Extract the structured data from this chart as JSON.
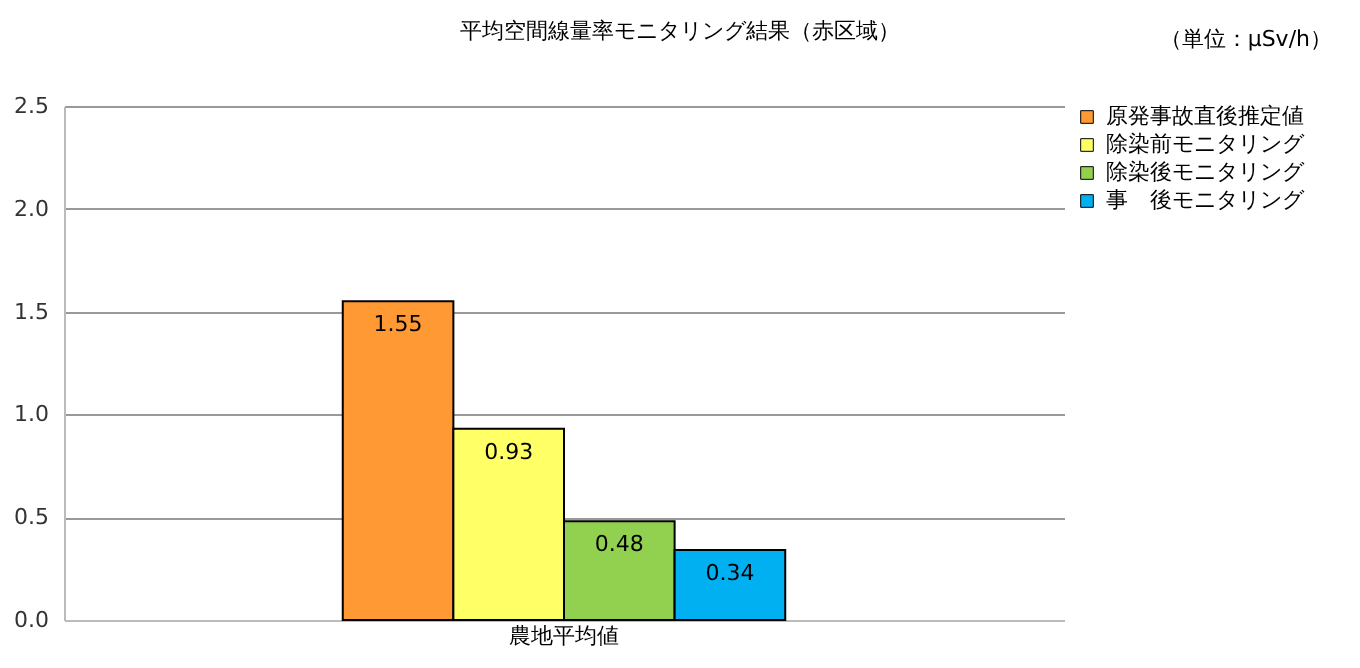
{
  "chart_data": {
    "type": "bar",
    "title": "平均空間線量率モニタリング結果",
    "subtitle": "（赤区域）",
    "annotations": [
      "（単位：μSv/h）"
    ],
    "categories": [
      "農地平均値"
    ],
    "series": [
      {
        "name": "原発事故直後推定値",
        "color": "#ff9933",
        "values": [
          1.55
        ]
      },
      {
        "name": "除染前モニタリング",
        "color": "#ffff66",
        "values": [
          0.93
        ]
      },
      {
        "name": "除染後モニタリング",
        "color": "#92d050",
        "values": [
          0.48
        ]
      },
      {
        "name": "事　後モニタリング",
        "color": "#00b0f0",
        "values": [
          0.34
        ]
      }
    ],
    "ylim": [
      0,
      2.5
    ],
    "yticks": [
      {
        "value": 0,
        "label": "0.0"
      },
      {
        "value": 0.5,
        "label": "0.5"
      },
      {
        "value": 1,
        "label": "1.0"
      },
      {
        "value": 1.5,
        "label": "1.5"
      },
      {
        "value": 2,
        "label": "2.0"
      },
      {
        "value": 2.5,
        "label": "2.5"
      }
    ],
    "grid": "y",
    "legend": "right",
    "data_labels": true
  }
}
